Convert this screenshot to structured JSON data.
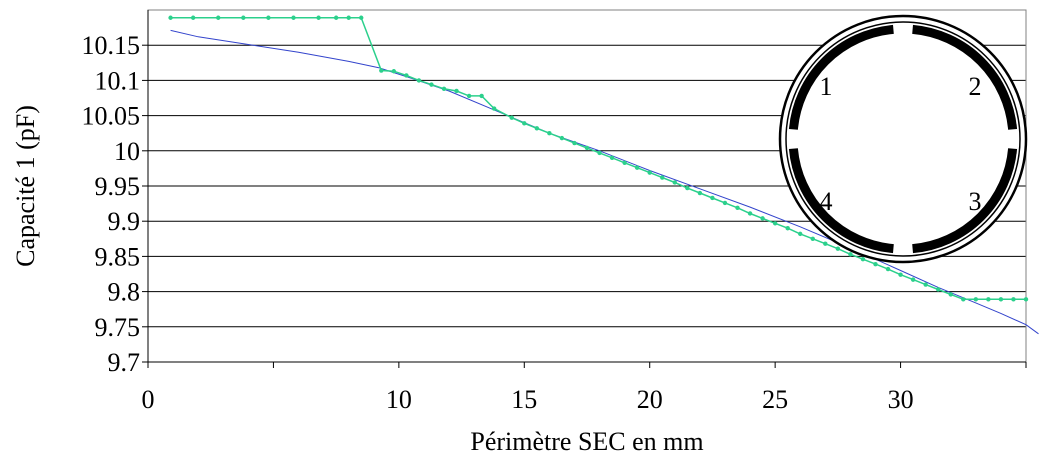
{
  "chart_data": {
    "type": "line",
    "title": "",
    "xlabel": "Périmètre SEC en mm",
    "ylabel": "Capacité 1 (pF)",
    "xlim": [
      0,
      35
    ],
    "ylim": [
      9.7,
      10.2
    ],
    "x_ticks": [
      0,
      10,
      15,
      20,
      25,
      30
    ],
    "x_tick_labels": [
      "0",
      "10",
      "15",
      "20",
      "25",
      "30"
    ],
    "y_ticks": [
      9.7,
      9.75,
      9.8,
      9.85,
      9.9,
      9.95,
      10,
      10.05,
      10.1,
      10.15
    ],
    "y_tick_labels": [
      "9.7",
      "9.75",
      "9.8",
      "9.85",
      "9.9",
      "9.95",
      "10",
      "10.05",
      "10.1",
      "10.15"
    ],
    "grid": {
      "horizontal": true,
      "vertical": false
    },
    "legend": "none",
    "series": [
      {
        "color": "#3344cc",
        "marker": "none",
        "x": [
          0.9,
          2.0,
          4.0,
          6.0,
          8.0,
          9.2,
          10.5,
          12.0,
          14.0,
          16.0,
          18.0,
          20.0,
          22.0,
          24.0,
          26.0,
          28.0,
          30.0,
          31.5,
          33.0,
          34.0,
          35.0,
          35.5
        ],
        "y": [
          10.171,
          10.162,
          10.151,
          10.14,
          10.127,
          10.118,
          10.103,
          10.085,
          10.055,
          10.025,
          10.0,
          9.972,
          9.946,
          9.92,
          9.892,
          9.862,
          9.83,
          9.806,
          9.784,
          9.769,
          9.753,
          9.74
        ]
      },
      {
        "color": "#2bd08c",
        "marker": "dot",
        "x": [
          0.9,
          1.8,
          2.8,
          3.8,
          4.8,
          5.8,
          6.8,
          7.5,
          8.0,
          8.5,
          9.3,
          9.8,
          10.3,
          10.8,
          11.3,
          11.8,
          12.3,
          12.8,
          13.3,
          13.8,
          14.5,
          15.0,
          15.5,
          16.0,
          16.5,
          17.0,
          17.5,
          18.0,
          18.5,
          19.0,
          19.5,
          20.0,
          20.5,
          21.0,
          21.5,
          22.0,
          22.5,
          23.0,
          23.5,
          24.0,
          24.5,
          25.0,
          25.5,
          26.0,
          26.5,
          27.0,
          27.5,
          28.0,
          28.5,
          29.0,
          29.5,
          30.0,
          30.5,
          31.0,
          31.5,
          32.0,
          32.5,
          33.0,
          33.5,
          34.0,
          34.5,
          35.0
        ],
        "y": [
          10.189,
          10.189,
          10.189,
          10.189,
          10.189,
          10.189,
          10.189,
          10.189,
          10.189,
          10.189,
          10.114,
          10.113,
          10.107,
          10.1,
          10.094,
          10.088,
          10.085,
          10.078,
          10.078,
          10.06,
          10.047,
          10.039,
          10.032,
          10.025,
          10.018,
          10.011,
          10.004,
          9.997,
          9.99,
          9.983,
          9.976,
          9.969,
          9.962,
          9.955,
          9.947,
          9.94,
          9.933,
          9.926,
          9.919,
          9.911,
          9.904,
          9.897,
          9.89,
          9.882,
          9.875,
          9.868,
          9.861,
          9.853,
          9.846,
          9.839,
          9.832,
          9.824,
          9.817,
          9.81,
          9.803,
          9.796,
          9.789,
          9.789,
          9.789,
          9.789,
          9.789,
          9.789
        ]
      }
    ],
    "inset_labels": [
      "1",
      "2",
      "3",
      "4"
    ]
  }
}
